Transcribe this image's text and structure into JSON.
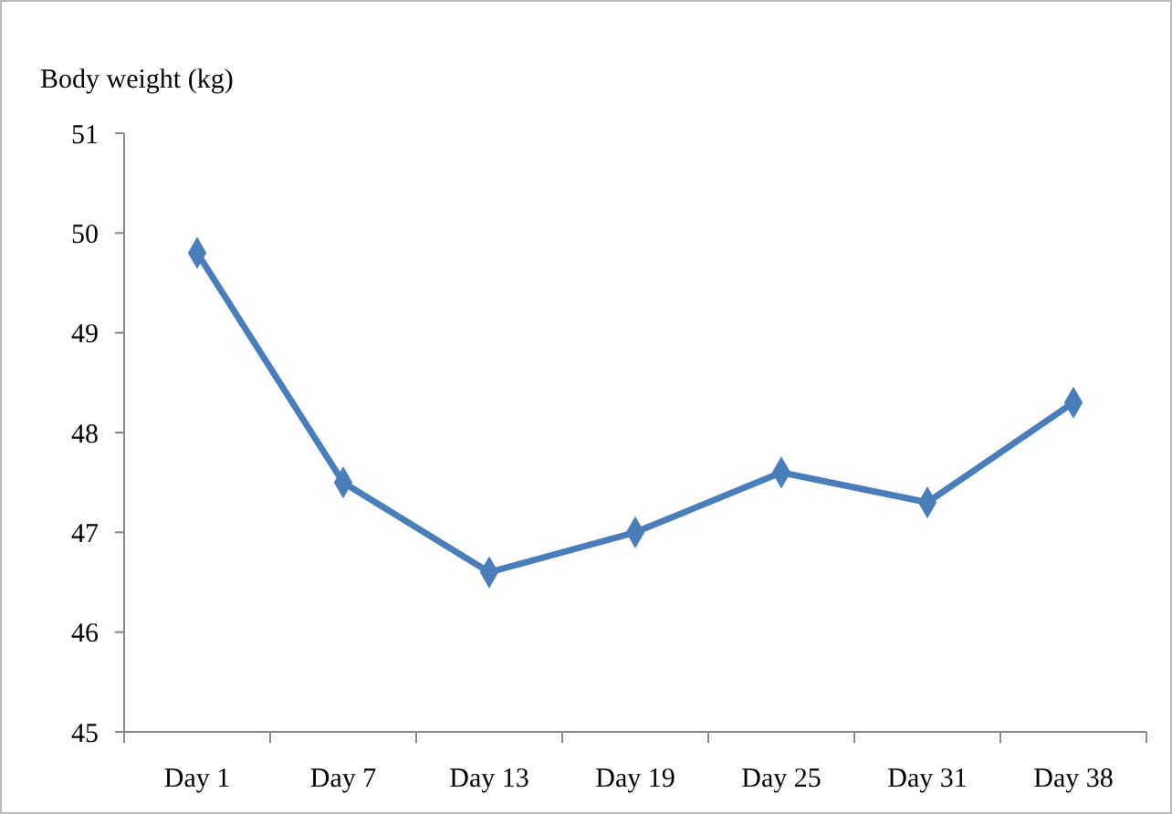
{
  "chart_data": {
    "type": "line",
    "ylabel": "Body weight (kg)",
    "categories": [
      "Day 1",
      "Day 7",
      "Day 13",
      "Day 19",
      "Day 25",
      "Day 31",
      "Day 38"
    ],
    "series": [
      {
        "color": "#4a7ebb",
        "values": [
          49.8,
          47.5,
          46.6,
          47.0,
          47.6,
          47.3,
          48.3
        ]
      }
    ],
    "ylim": [
      45,
      51
    ],
    "yticks": [
      45,
      46,
      47,
      48,
      49,
      50,
      51
    ],
    "marker": "diamond",
    "line_style": "solid"
  }
}
